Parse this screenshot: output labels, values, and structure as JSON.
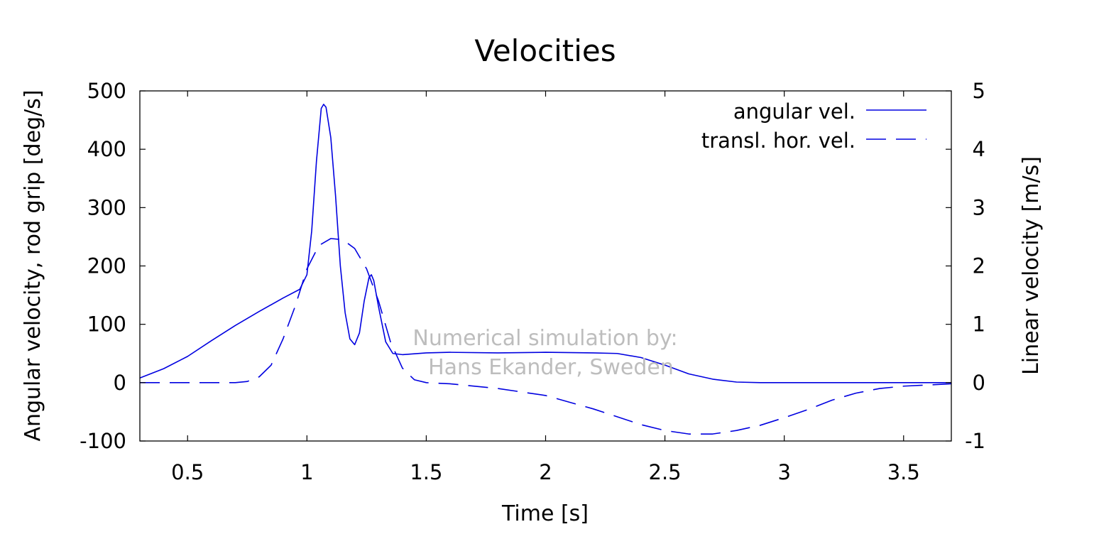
{
  "chart_data": {
    "type": "line",
    "title": "Velocities",
    "xlabel": "Time [s]",
    "ylabel_left": "Angular velocity, rod grip [deg/s]",
    "ylabel_right": "Linear velocity [m/s]",
    "xlim": [
      0.3,
      3.7
    ],
    "ylim_left": [
      -100,
      500
    ],
    "ylim_right": [
      -1,
      5
    ],
    "x_ticks": [
      "0.5",
      "1",
      "1.5",
      "2",
      "2.5",
      "3",
      "3.5"
    ],
    "y_ticks_left": [
      "-100",
      "0",
      "100",
      "200",
      "300",
      "400",
      "500"
    ],
    "y_ticks_right": [
      "-1",
      "0",
      "1",
      "2",
      "3",
      "4",
      "5"
    ],
    "grid": false,
    "legend_position": "top-right",
    "watermark": [
      "Numerical simulation by:",
      "Hans Ekander, Sweden"
    ],
    "colors": {
      "series": "#0000e0",
      "axis": "#000000",
      "watermark": "#bdbdbd"
    },
    "series": [
      {
        "name": "angular vel.",
        "axis": "left",
        "style": "solid",
        "points": [
          [
            0.3,
            8
          ],
          [
            0.4,
            24
          ],
          [
            0.5,
            45
          ],
          [
            0.6,
            72
          ],
          [
            0.7,
            98
          ],
          [
            0.8,
            122
          ],
          [
            0.9,
            145
          ],
          [
            0.97,
            160
          ],
          [
            1.0,
            185
          ],
          [
            1.02,
            260
          ],
          [
            1.04,
            380
          ],
          [
            1.06,
            470
          ],
          [
            1.07,
            477
          ],
          [
            1.08,
            472
          ],
          [
            1.1,
            420
          ],
          [
            1.12,
            320
          ],
          [
            1.14,
            200
          ],
          [
            1.16,
            120
          ],
          [
            1.18,
            75
          ],
          [
            1.2,
            65
          ],
          [
            1.22,
            85
          ],
          [
            1.24,
            140
          ],
          [
            1.26,
            180
          ],
          [
            1.27,
            185
          ],
          [
            1.28,
            175
          ],
          [
            1.3,
            130
          ],
          [
            1.33,
            70
          ],
          [
            1.36,
            50
          ],
          [
            1.4,
            48
          ],
          [
            1.5,
            51
          ],
          [
            1.6,
            52
          ],
          [
            1.8,
            51
          ],
          [
            2.0,
            52
          ],
          [
            2.2,
            51
          ],
          [
            2.3,
            50
          ],
          [
            2.4,
            43
          ],
          [
            2.5,
            30
          ],
          [
            2.6,
            15
          ],
          [
            2.7,
            6
          ],
          [
            2.8,
            1
          ],
          [
            2.9,
            0
          ],
          [
            3.0,
            0
          ],
          [
            3.2,
            0
          ],
          [
            3.4,
            0
          ],
          [
            3.7,
            0
          ]
        ]
      },
      {
        "name": "transl. hor. vel.",
        "axis": "right",
        "style": "dashed",
        "points": [
          [
            0.3,
            0
          ],
          [
            0.6,
            0
          ],
          [
            0.7,
            0.0
          ],
          [
            0.75,
            0.02
          ],
          [
            0.8,
            0.1
          ],
          [
            0.85,
            0.3
          ],
          [
            0.9,
            0.75
          ],
          [
            0.95,
            1.3
          ],
          [
            1.0,
            1.95
          ],
          [
            1.05,
            2.35
          ],
          [
            1.1,
            2.47
          ],
          [
            1.15,
            2.45
          ],
          [
            1.2,
            2.3
          ],
          [
            1.25,
            1.95
          ],
          [
            1.3,
            1.4
          ],
          [
            1.35,
            0.7
          ],
          [
            1.4,
            0.25
          ],
          [
            1.45,
            0.05
          ],
          [
            1.5,
            0.0
          ],
          [
            1.6,
            -0.02
          ],
          [
            1.8,
            -0.1
          ],
          [
            2.0,
            -0.22
          ],
          [
            2.2,
            -0.45
          ],
          [
            2.4,
            -0.72
          ],
          [
            2.5,
            -0.82
          ],
          [
            2.6,
            -0.88
          ],
          [
            2.7,
            -0.88
          ],
          [
            2.8,
            -0.82
          ],
          [
            2.9,
            -0.73
          ],
          [
            3.0,
            -0.6
          ],
          [
            3.1,
            -0.46
          ],
          [
            3.2,
            -0.3
          ],
          [
            3.3,
            -0.18
          ],
          [
            3.4,
            -0.1
          ],
          [
            3.5,
            -0.06
          ],
          [
            3.6,
            -0.04
          ],
          [
            3.7,
            -0.02
          ]
        ]
      }
    ]
  }
}
